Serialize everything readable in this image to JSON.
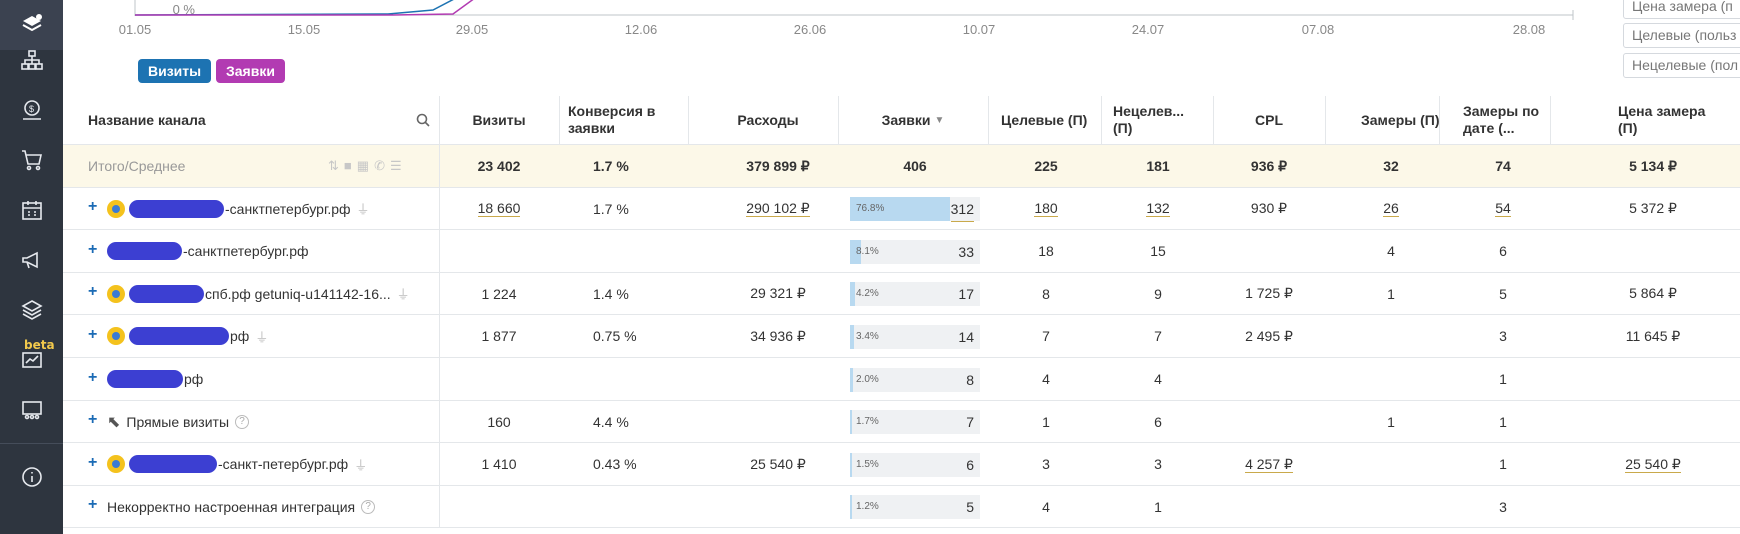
{
  "chart": {
    "y_tick": "0 %",
    "x_ticks": [
      "01.05",
      "15.05",
      "29.05",
      "12.06",
      "26.06",
      "10.07",
      "24.07",
      "07.08",
      "28.08"
    ],
    "legend": [
      {
        "label": "Визиты",
        "color": "#1d73b2"
      },
      {
        "label": "Заявки",
        "color": "#b23bb2"
      }
    ]
  },
  "fields": [
    "Цена замера (п",
    "Целевые (польз",
    "Нецелевые (пол"
  ],
  "table": {
    "headers": {
      "name": "Название канала",
      "visits": "Визиты",
      "conversion": "Конверсия в заявки",
      "expenses": "Расходы",
      "requests": "Заявки",
      "target": "Целевые (П)",
      "nontarget": "Нецелев... (П)",
      "cpl": "CPL",
      "measures": "Замеры (П)",
      "measures_date": "Замеры по дате (...",
      "measure_price": "Цена замера (П)"
    },
    "total": {
      "name": "Итого/Среднее",
      "visits": "23 402",
      "conversion": "1.7 %",
      "expenses": "379 899 ₽",
      "requests": "406",
      "target": "225",
      "nontarget": "181",
      "cpl": "936 ₽",
      "measures": "32",
      "measures_date": "74",
      "measure_price": "5 134 ₽"
    },
    "rows": [
      {
        "name": "-санктпетербург.рф",
        "visits": "18 660",
        "conversion": "1.7 %",
        "expenses": "290 102 ₽",
        "pct": "76.8%",
        "requests": "312",
        "target": "180",
        "nontarget": "132",
        "cpl": "930 ₽",
        "measures": "26",
        "measures_date": "54",
        "measure_price": "5 372 ₽"
      },
      {
        "name": "-санктпетербург.рф",
        "visits": "",
        "conversion": "",
        "expenses": "",
        "pct": "8.1%",
        "requests": "33",
        "target": "18",
        "nontarget": "15",
        "cpl": "",
        "measures": "4",
        "measures_date": "6",
        "measure_price": ""
      },
      {
        "name": "спб.рф getuniq-u141142-16...",
        "visits": "1 224",
        "conversion": "1.4 %",
        "expenses": "29 321 ₽",
        "pct": "4.2%",
        "requests": "17",
        "target": "8",
        "nontarget": "9",
        "cpl": "1 725 ₽",
        "measures": "1",
        "measures_date": "5",
        "measure_price": "5 864 ₽"
      },
      {
        "name": "рф",
        "visits": "1 877",
        "conversion": "0.75 %",
        "expenses": "34 936 ₽",
        "pct": "3.4%",
        "requests": "14",
        "target": "7",
        "nontarget": "7",
        "cpl": "2 495 ₽",
        "measures": "",
        "measures_date": "3",
        "measure_price": "11 645 ₽"
      },
      {
        "name": "рф",
        "visits": "",
        "conversion": "",
        "expenses": "",
        "pct": "2.0%",
        "requests": "8",
        "target": "4",
        "nontarget": "4",
        "cpl": "",
        "measures": "",
        "measures_date": "1",
        "measure_price": ""
      },
      {
        "name": "Прямые визиты",
        "visits": "160",
        "conversion": "4.4 %",
        "expenses": "",
        "pct": "1.7%",
        "requests": "7",
        "target": "1",
        "nontarget": "6",
        "cpl": "",
        "measures": "1",
        "measures_date": "1",
        "measure_price": ""
      },
      {
        "name": "-санкт-петербург.рф",
        "visits": "1 410",
        "conversion": "0.43 %",
        "expenses": "25 540 ₽",
        "pct": "1.5%",
        "requests": "6",
        "target": "3",
        "nontarget": "3",
        "cpl": "4 257 ₽",
        "measures": "",
        "measures_date": "1",
        "measure_price": "25 540 ₽"
      },
      {
        "name": "Некорректно настроенная интеграция",
        "visits": "",
        "conversion": "",
        "expenses": "",
        "pct": "1.2%",
        "requests": "5",
        "target": "4",
        "nontarget": "1",
        "cpl": "",
        "measures": "",
        "measures_date": "3",
        "measure_price": ""
      }
    ]
  },
  "sidebar": {
    "beta_label": "beta"
  }
}
